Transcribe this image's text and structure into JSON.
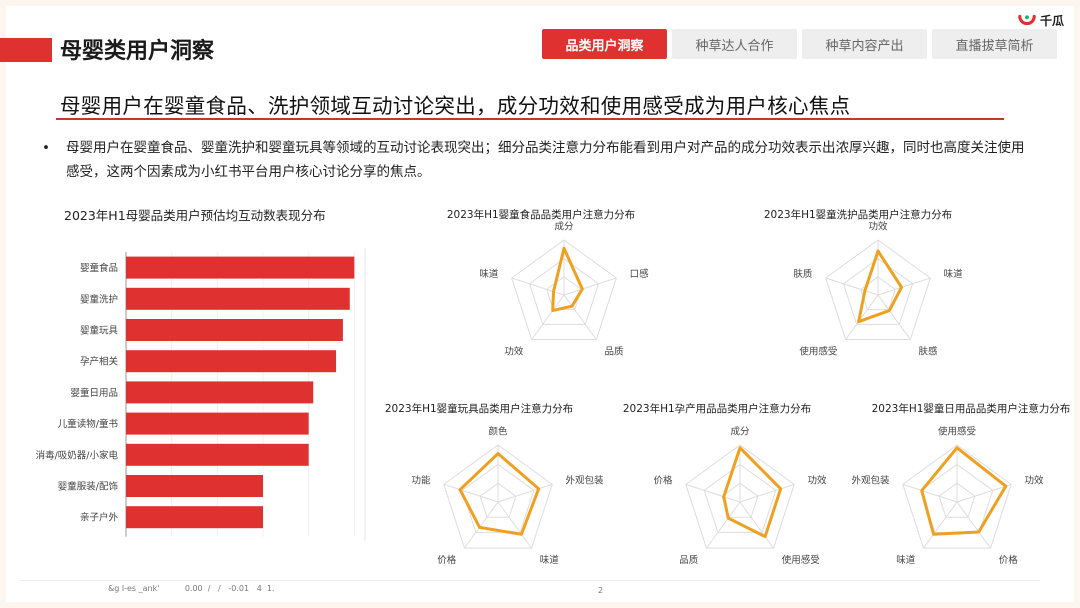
{
  "page": {
    "title": "母婴类用户洞察",
    "logo": "千瓜",
    "tabs": [
      {
        "label": "品类用户洞察",
        "active": true
      },
      {
        "label": "种草达人合作",
        "active": false
      },
      {
        "label": "种草内容产出",
        "active": false
      },
      {
        "label": "直播拔草简析",
        "active": false
      }
    ],
    "headline": "母婴用户在婴童食品、洗护领域互动讨论突出，成分功效和使用感受成为用户核心焦点",
    "bullet": "母婴用户在婴童食品、婴童洗护和婴童玩具等领域的互动讨论表现突出；细分品类注意力分布能看到用户对产品的成分功效表示出浓厚兴趣，同时也高度关注使用感受，这两个因素成为小红书平台用户核心讨论分享的焦点。",
    "footer_text": "&g l-es _ank'          0.00  /   /   -0.01   4  1.",
    "page_number": "2",
    "colors": {
      "accent": "#e03131",
      "radar_line": "#f0a020",
      "grid": "#dddddd"
    }
  },
  "chart_data": [
    {
      "type": "bar",
      "orientation": "horizontal",
      "title": "2023年H1母婴品类用户预估均互动数表现分布",
      "categories": [
        "婴童食品",
        "婴童洗护",
        "婴童玩具",
        "孕产相关",
        "婴童日用品",
        "儿童读物/童书",
        "消毒/吸奶器/小家电",
        "婴童服装/配饰",
        "亲子户外"
      ],
      "values": [
        100,
        98,
        95,
        92,
        82,
        80,
        80,
        60,
        60
      ],
      "xlim": [
        0,
        120
      ],
      "axis_labels_shown": false,
      "grid": true
    },
    {
      "type": "radar",
      "title": "2023年H1婴童食品品类用户注意力分布",
      "axes": [
        "成分",
        "口感",
        "品质",
        "功效",
        "味道"
      ],
      "values": [
        0.85,
        0.35,
        0.25,
        0.35,
        0.2
      ],
      "max": 1
    },
    {
      "type": "radar",
      "title": "2023年H1婴童洗护品类用户注意力分布",
      "axes": [
        "功效",
        "味道",
        "肤感",
        "使用感受",
        "肤质"
      ],
      "values": [
        0.8,
        0.45,
        0.35,
        0.6,
        0.25
      ],
      "max": 1
    },
    {
      "type": "radar",
      "title": "2023年H1婴童玩具品类用户注意力分布",
      "axes": [
        "颜色",
        "外观包装",
        "味道",
        "价格",
        "功能"
      ],
      "values": [
        0.85,
        0.75,
        0.7,
        0.55,
        0.7
      ],
      "max": 1
    },
    {
      "type": "radar",
      "title": "2023年H1孕产用品品类用户注意力分布",
      "axes": [
        "成分",
        "功效",
        "使用感受",
        "品质",
        "价格"
      ],
      "values": [
        0.95,
        0.75,
        0.75,
        0.35,
        0.3
      ],
      "max": 1
    },
    {
      "type": "radar",
      "title": "2023年H1婴童日用品品类用户注意力分布",
      "axes": [
        "使用感受",
        "功效",
        "价格",
        "味道",
        "外观包装"
      ],
      "values": [
        0.95,
        0.9,
        0.65,
        0.7,
        0.65
      ],
      "max": 1
    }
  ]
}
